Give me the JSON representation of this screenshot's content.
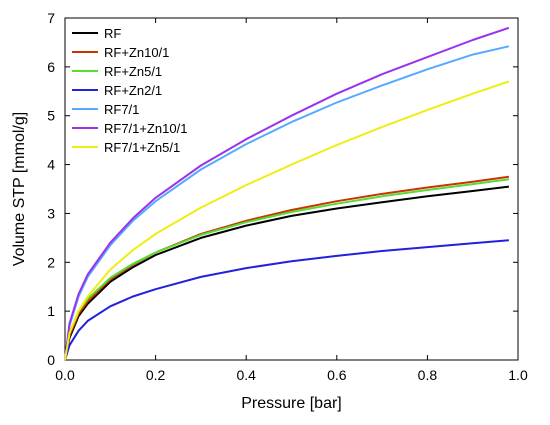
{
  "chart_data": {
    "type": "line",
    "xlabel": "Pressure [bar]",
    "ylabel": "Volume STP [mmol/g]",
    "xlim": [
      0,
      1.0
    ],
    "ylim": [
      0,
      7
    ],
    "x_ticks": [
      "0.0",
      "0.2",
      "0.4",
      "0.6",
      "0.8",
      "1.0"
    ],
    "y_ticks": [
      "0",
      "1",
      "2",
      "3",
      "4",
      "5",
      "6",
      "7"
    ],
    "grid": false,
    "legend_position": "top-left",
    "series": [
      {
        "name": "RF",
        "color": "#000000",
        "x": [
          0.0,
          0.01,
          0.03,
          0.05,
          0.1,
          0.15,
          0.2,
          0.3,
          0.4,
          0.5,
          0.6,
          0.7,
          0.8,
          0.9,
          0.98
        ],
        "y": [
          0.0,
          0.45,
          0.9,
          1.15,
          1.6,
          1.9,
          2.15,
          2.5,
          2.75,
          2.95,
          3.1,
          3.23,
          3.35,
          3.46,
          3.55
        ]
      },
      {
        "name": "RF+Zn10/1",
        "color": "#cc3300",
        "x": [
          0.0,
          0.01,
          0.03,
          0.05,
          0.1,
          0.15,
          0.2,
          0.3,
          0.4,
          0.5,
          0.6,
          0.7,
          0.8,
          0.9,
          0.98
        ],
        "y": [
          0.0,
          0.5,
          0.95,
          1.2,
          1.65,
          1.95,
          2.2,
          2.58,
          2.85,
          3.07,
          3.25,
          3.4,
          3.53,
          3.65,
          3.75
        ]
      },
      {
        "name": "RF+Zn5/1",
        "color": "#55dd33",
        "x": [
          0.0,
          0.01,
          0.03,
          0.05,
          0.1,
          0.15,
          0.2,
          0.3,
          0.4,
          0.5,
          0.6,
          0.7,
          0.8,
          0.9,
          0.98
        ],
        "y": [
          0.0,
          0.55,
          1.0,
          1.25,
          1.68,
          1.97,
          2.2,
          2.56,
          2.82,
          3.03,
          3.2,
          3.35,
          3.48,
          3.6,
          3.7
        ]
      },
      {
        "name": "RF+Zn2/1",
        "color": "#2222dd",
        "x": [
          0.0,
          0.01,
          0.03,
          0.05,
          0.1,
          0.15,
          0.2,
          0.3,
          0.4,
          0.5,
          0.6,
          0.7,
          0.8,
          0.9,
          0.98
        ],
        "y": [
          0.0,
          0.3,
          0.6,
          0.8,
          1.1,
          1.3,
          1.45,
          1.7,
          1.88,
          2.02,
          2.13,
          2.23,
          2.31,
          2.39,
          2.45
        ]
      },
      {
        "name": "RF7/1",
        "color": "#55aaff",
        "x": [
          0.0,
          0.01,
          0.03,
          0.05,
          0.1,
          0.15,
          0.2,
          0.3,
          0.4,
          0.5,
          0.6,
          0.7,
          0.8,
          0.9,
          0.98
        ],
        "y": [
          0.0,
          0.7,
          1.3,
          1.7,
          2.35,
          2.85,
          3.25,
          3.9,
          4.42,
          4.87,
          5.27,
          5.62,
          5.95,
          6.25,
          6.42
        ]
      },
      {
        "name": "RF7/1+Zn10/1",
        "color": "#9933ee",
        "x": [
          0.0,
          0.01,
          0.03,
          0.05,
          0.1,
          0.15,
          0.2,
          0.3,
          0.4,
          0.5,
          0.6,
          0.7,
          0.8,
          0.9,
          0.98
        ],
        "y": [
          0.0,
          0.75,
          1.35,
          1.75,
          2.4,
          2.9,
          3.32,
          3.98,
          4.52,
          5.0,
          5.45,
          5.85,
          6.2,
          6.55,
          6.8
        ]
      },
      {
        "name": "RF7/1+Zn5/1",
        "color": "#eeee11",
        "x": [
          0.0,
          0.01,
          0.03,
          0.05,
          0.1,
          0.15,
          0.2,
          0.3,
          0.4,
          0.5,
          0.6,
          0.7,
          0.8,
          0.9,
          0.98
        ],
        "y": [
          0.0,
          0.55,
          1.0,
          1.3,
          1.85,
          2.25,
          2.58,
          3.12,
          3.58,
          4.0,
          4.4,
          4.77,
          5.12,
          5.45,
          5.7
        ]
      }
    ]
  }
}
